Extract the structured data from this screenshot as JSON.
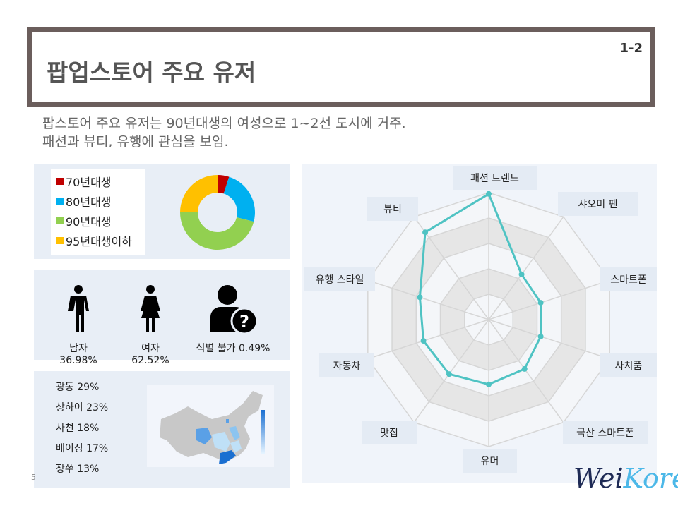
{
  "header": {
    "title": "팝업스토어 주요 유저",
    "page_code": "1-2"
  },
  "subtitle": {
    "line1": "팝스토어 주요 유저는 90년대생의 여성으로 1~2선 도시에 거주.",
    "line2": "패션과 뷰티, 유행에 관심을 보임."
  },
  "age_chart": {
    "type": "pie",
    "legend": [
      {
        "label": "70년대생",
        "color": "#c00000",
        "value": 5
      },
      {
        "label": "80년대생",
        "color": "#00b0f0",
        "value": 24
      },
      {
        "label": "90년대생",
        "color": "#92d050",
        "value": 46
      },
      {
        "label": "95년대생이하",
        "color": "#ffc000",
        "value": 25
      }
    ]
  },
  "gender": [
    {
      "icon": "male-icon",
      "label": "남자 36.98%"
    },
    {
      "icon": "female-icon",
      "label": "여자 62.52%"
    },
    {
      "icon": "unknown-user-icon",
      "label": "식별 불가 0.49%"
    }
  ],
  "cities": [
    "광동 29%",
    "상하이 23%",
    "사천 18%",
    "베이징 17%",
    "장쑤 13%"
  ],
  "chart_data": {
    "type": "radar",
    "categories": [
      "패션 트렌드",
      "샤오미 팬",
      "스마트폰",
      "사치품",
      "국산 스마트폰",
      "유머",
      "맛집",
      "자동차",
      "유행 스타일",
      "뷰티"
    ],
    "values": [
      99,
      44,
      43,
      43,
      48,
      51,
      53,
      54,
      57,
      85
    ],
    "rlim": [
      0,
      100
    ],
    "rings": 5,
    "color": "#4fc3c3"
  },
  "footer": {
    "page_number": "5",
    "logo_part1": "Wei",
    "logo_part2": "Korea"
  }
}
